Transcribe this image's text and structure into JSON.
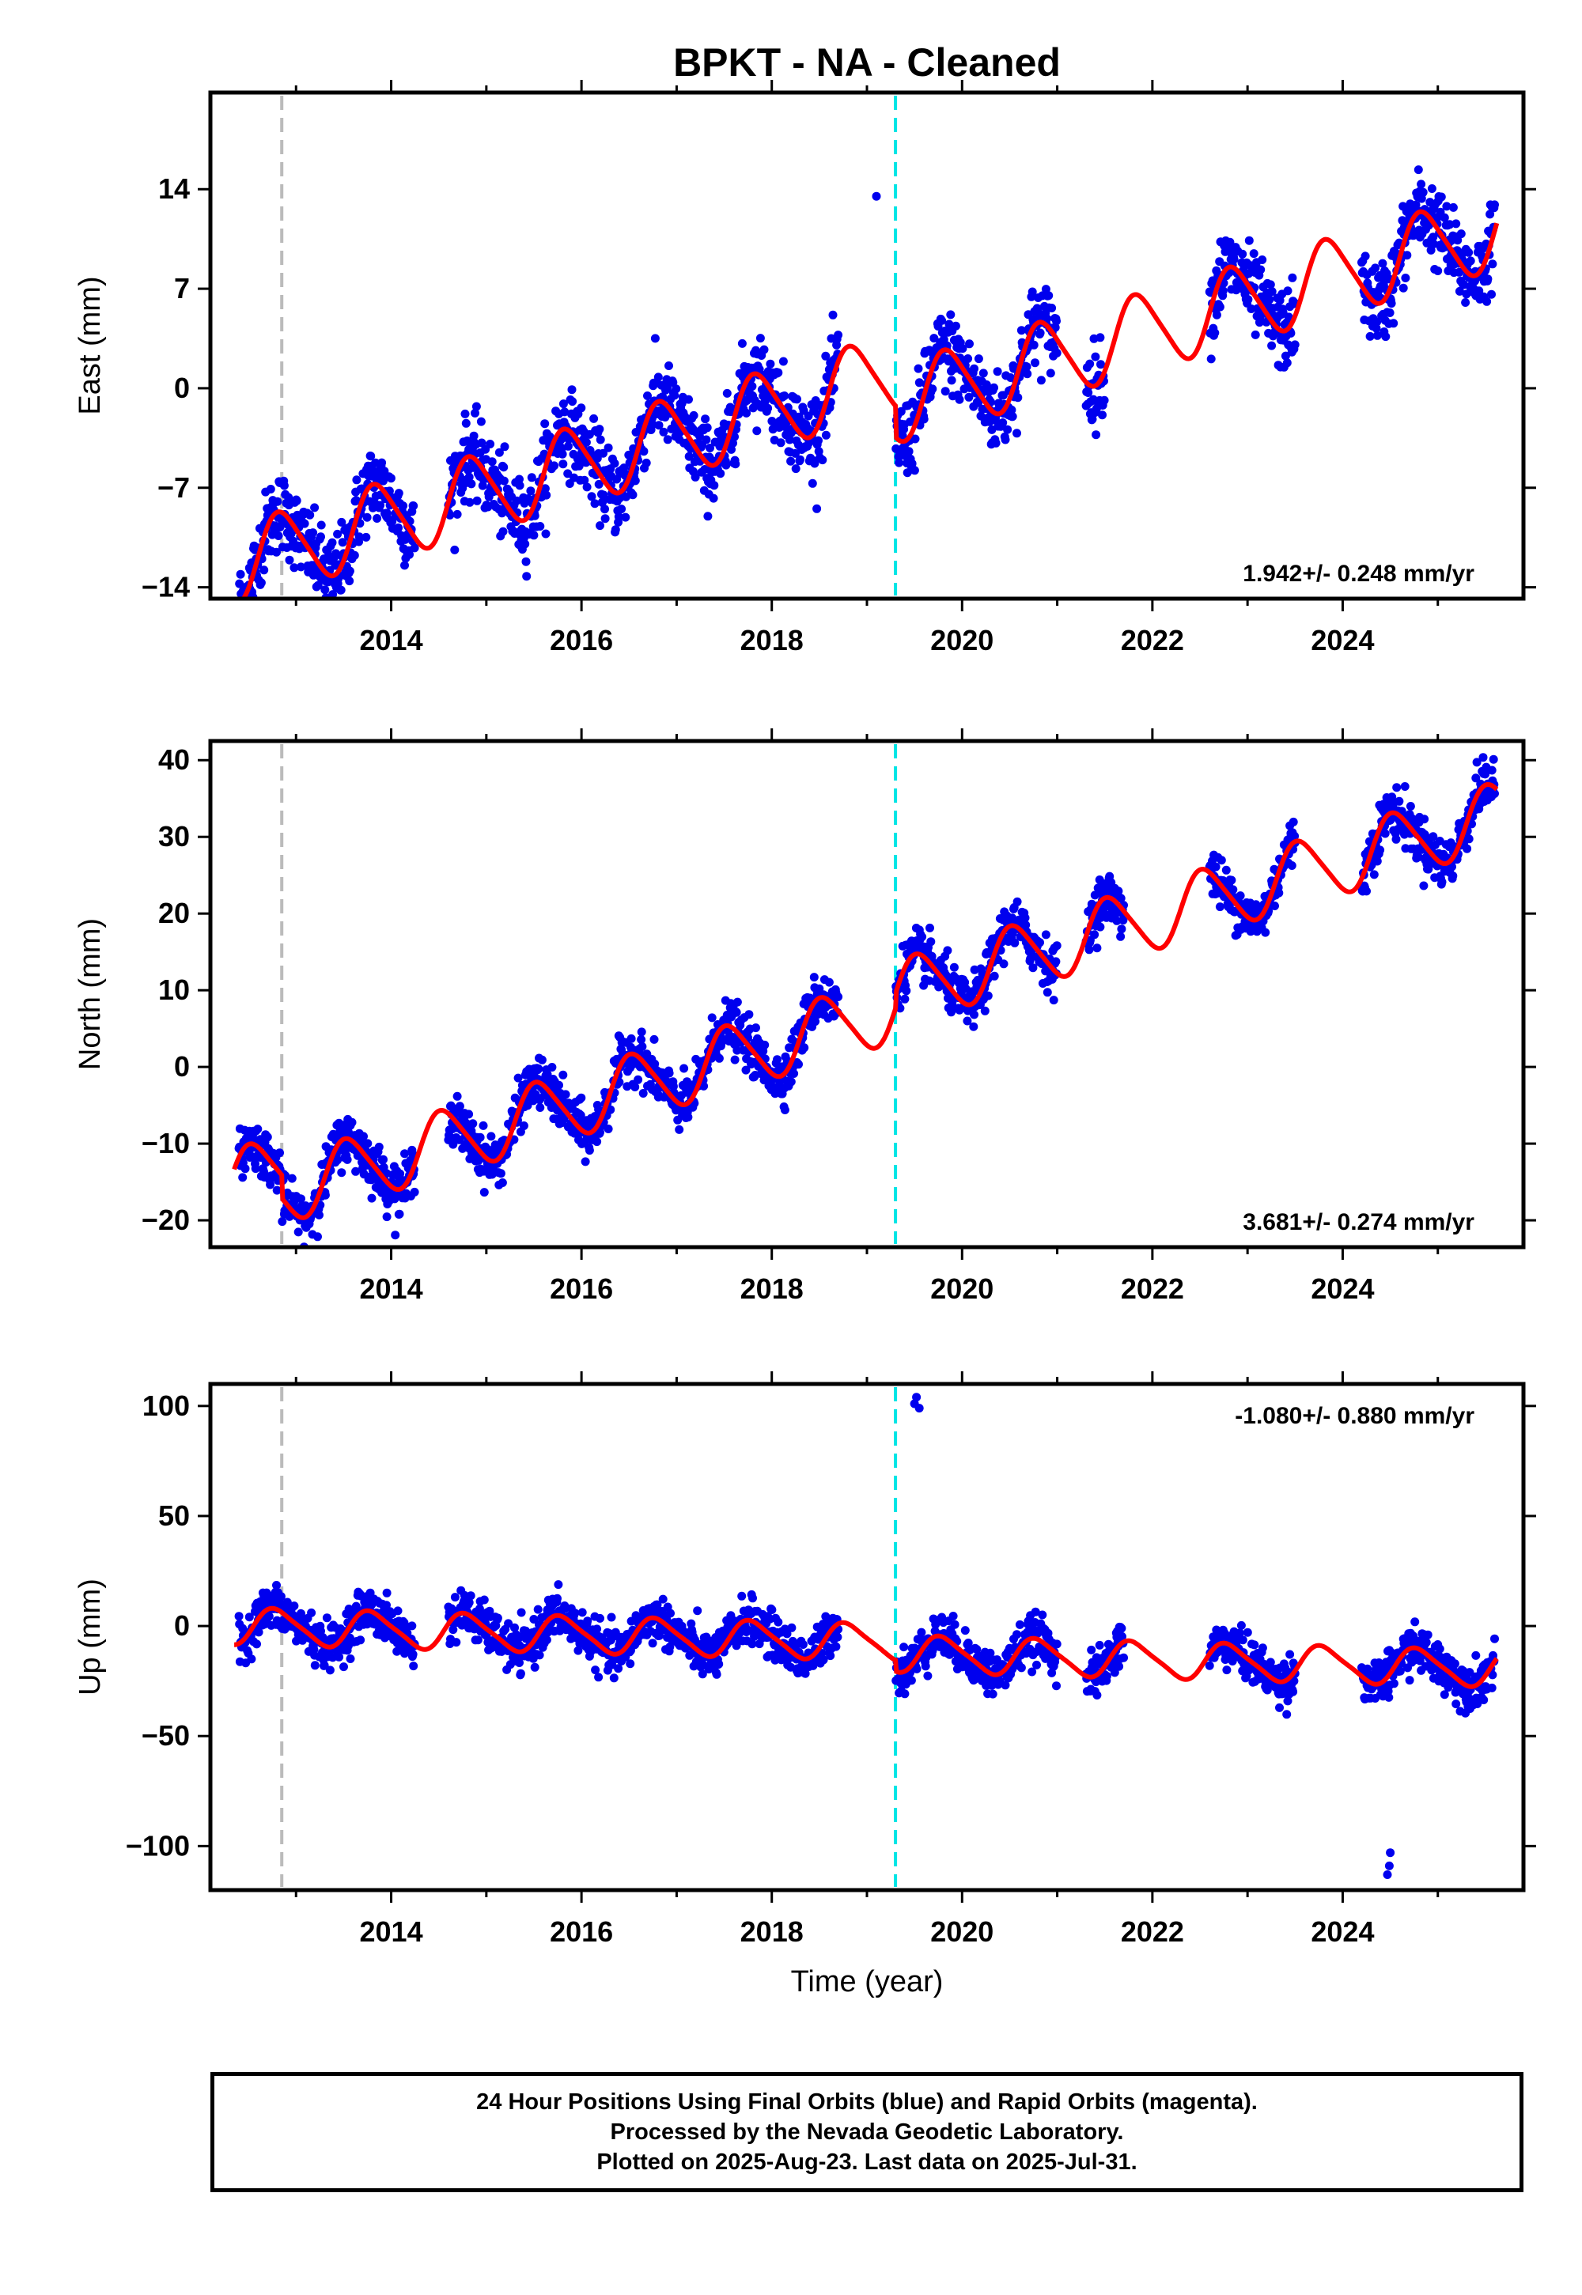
{
  "title": "BPKT  - NA - Cleaned",
  "colors": {
    "points": "#0000ee",
    "model": "#ff0000",
    "gray_marker": "#bbbbbb",
    "cyan_marker": "#00e5e5"
  },
  "markers": {
    "gray_x": 2012.85,
    "cyan_x": 2019.3
  },
  "xlabel": "Time (year)",
  "chart_data": [
    {
      "type": "scatter",
      "name_key": "east",
      "ylabel": "East (mm)",
      "xlim": [
        2012.1,
        2025.9
      ],
      "ylim": [
        -14.8,
        20.8
      ],
      "xticks": [
        2014,
        2016,
        2018,
        2020,
        2022,
        2024
      ],
      "xtick_labels": [
        "2014",
        "2016",
        "2018",
        "2020",
        "2022",
        "2024"
      ],
      "yticks": [
        -14,
        -7,
        0,
        7,
        14
      ],
      "ytick_labels": [
        "−14",
        "−7",
        "0",
        "7",
        "14"
      ],
      "rate": "1.942+/- 0.248 mm/yr",
      "rate_position": "bottom-right",
      "model": {
        "base": -12.4,
        "t0": 2012.35,
        "slope": 1.942,
        "seg_times": [
          2012.85,
          2019.3
        ],
        "seg_offsets": [
          0.0,
          -2.2
        ],
        "amp": 2.7,
        "phase": 2012.6,
        "amp2": 0.4
      },
      "points_series": {
        "start": 2012.4,
        "end": 2025.6,
        "noise": 1.4,
        "gaps": [
          [
            2014.25,
            2014.6
          ],
          [
            2018.7,
            2019.3
          ],
          [
            2021.0,
            2021.3
          ],
          [
            2021.5,
            2022.6
          ],
          [
            2023.5,
            2024.2
          ]
        ],
        "outliers": [
          [
            2019.1,
            13.5
          ]
        ]
      }
    },
    {
      "type": "scatter",
      "name_key": "north",
      "ylabel": "North (mm)",
      "xlim": [
        2012.1,
        2025.9
      ],
      "ylim": [
        -23.5,
        42.5
      ],
      "xticks": [
        2014,
        2016,
        2018,
        2020,
        2022,
        2024
      ],
      "xtick_labels": [
        "2014",
        "2016",
        "2018",
        "2020",
        "2022",
        "2024"
      ],
      "yticks": [
        -20,
        -10,
        0,
        10,
        20,
        30,
        40
      ],
      "ytick_labels": [
        "−20",
        "−10",
        "0",
        "10",
        "20",
        "30",
        "40"
      ],
      "rate": "3.681+/- 0.274 mm/yr",
      "rate_position": "bottom-right",
      "model": {
        "base": -15.0,
        "t0": 2012.35,
        "slope": 3.681,
        "seg_times": [
          2012.85,
          2019.3
        ],
        "seg_offsets": [
          -3.0,
          2.0
        ],
        "amp": 4.2,
        "phase": 2012.3,
        "amp2": 0.6
      },
      "points_series": {
        "start": 2012.4,
        "end": 2025.6,
        "noise": 1.6,
        "gaps": [
          [
            2014.25,
            2014.6
          ],
          [
            2018.7,
            2019.3
          ],
          [
            2021.0,
            2021.3
          ],
          [
            2021.7,
            2022.6
          ],
          [
            2023.5,
            2024.2
          ]
        ],
        "outliers": []
      }
    },
    {
      "type": "scatter",
      "name_key": "up",
      "ylabel": "Up (mm)",
      "xlim": [
        2012.1,
        2025.9
      ],
      "ylim": [
        -120,
        110
      ],
      "xticks": [
        2014,
        2016,
        2018,
        2020,
        2022,
        2024
      ],
      "xtick_labels": [
        "2014",
        "2016",
        "2018",
        "2020",
        "2022",
        "2024"
      ],
      "yticks": [
        -100,
        -50,
        0,
        50,
        100
      ],
      "ytick_labels": [
        "−100",
        "−50",
        "0",
        "50",
        "100"
      ],
      "rate": "-1.080+/- 0.880 mm/yr",
      "rate_position": "top-right",
      "model": {
        "base": 0.0,
        "t0": 2012.35,
        "slope": -1.08,
        "seg_times": [
          2012.85,
          2019.3
        ],
        "seg_offsets": [
          0.0,
          -5.0
        ],
        "amp": 8.0,
        "phase": 2012.55,
        "amp2": 1.5
      },
      "points_series": {
        "start": 2012.4,
        "end": 2025.6,
        "noise": 5.0,
        "gaps": [
          [
            2014.25,
            2014.6
          ],
          [
            2018.7,
            2019.3
          ],
          [
            2021.0,
            2021.3
          ],
          [
            2021.7,
            2022.6
          ],
          [
            2023.5,
            2024.2
          ]
        ],
        "outliers": [
          [
            2019.5,
            101
          ],
          [
            2019.52,
            104
          ],
          [
            2019.55,
            99
          ],
          [
            2024.5,
            -103
          ],
          [
            2024.47,
            -113
          ],
          [
            2024.49,
            -109
          ]
        ]
      }
    }
  ],
  "footer": {
    "line1": "24 Hour Positions Using Final Orbits (blue) and Rapid Orbits (magenta).",
    "line2": "Processed by the Nevada Geodetic Laboratory.",
    "line3": "Plotted on 2025-Aug-23. Last data on 2025-Jul-31."
  }
}
